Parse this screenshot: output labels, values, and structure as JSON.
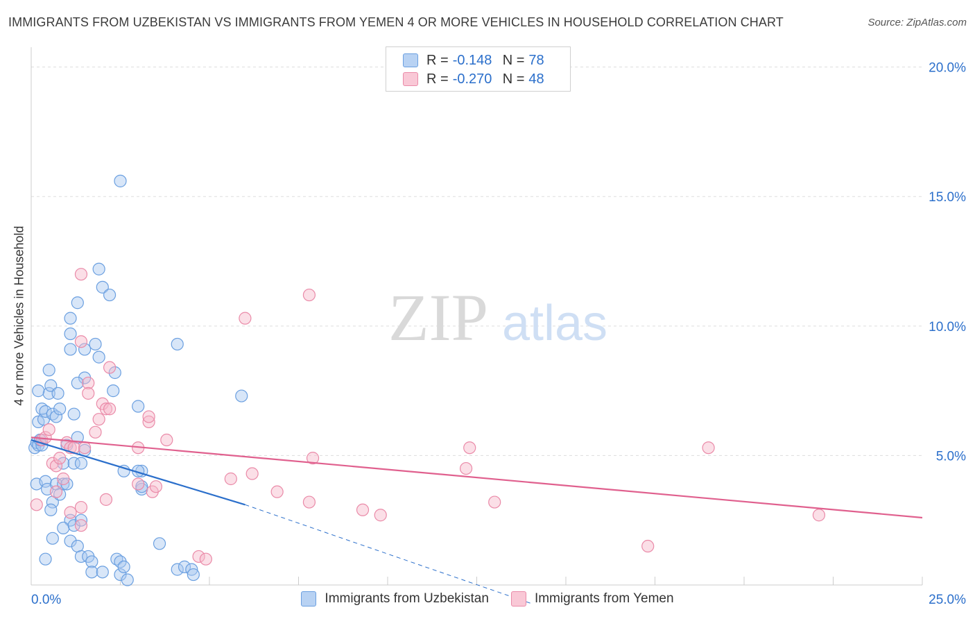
{
  "chart_data": {
    "type": "scatter",
    "title": "IMMIGRANTS FROM UZBEKISTAN VS IMMIGRANTS FROM YEMEN 4 OR MORE VEHICLES IN HOUSEHOLD CORRELATION CHART",
    "source": "Source: ZipAtlas.com",
    "xlabel": "",
    "ylabel": "4 or more Vehicles in Household",
    "xlim": [
      0,
      25
    ],
    "ylim": [
      0,
      20
    ],
    "x_tick_labels": [
      "0.0%",
      "25.0%"
    ],
    "y_ticks": [
      5,
      10,
      15,
      20
    ],
    "y_tick_labels": [
      "5.0%",
      "10.0%",
      "15.0%",
      "20.0%"
    ],
    "watermark": {
      "zip": "ZIP",
      "atlas": "atlas"
    },
    "legend": {
      "r_label": "R =",
      "n_label": "N =",
      "entries": [
        {
          "r": "-0.148",
          "n": "78"
        },
        {
          "r": "-0.270",
          "n": "48"
        }
      ]
    },
    "colors": {
      "uzbekistan_fill": "#a9c8ef",
      "uzbekistan_stroke": "#6a9fe0",
      "uzbekistan_line": "#2b6fcb",
      "yemen_fill": "#f6b7c9",
      "yemen_stroke": "#ea8aa8",
      "yemen_line": "#e0608e"
    },
    "series": [
      {
        "name": "Immigrants from Uzbekistan",
        "trend": {
          "x": [
            0,
            6
          ],
          "y": [
            5.6,
            3.1
          ],
          "dashed_to": [
            14,
            -0.7
          ]
        },
        "points": [
          [
            0.1,
            5.3
          ],
          [
            0.15,
            5.5
          ],
          [
            0.2,
            5.4
          ],
          [
            0.3,
            5.4
          ],
          [
            0.25,
            5.6
          ],
          [
            0.2,
            6.3
          ],
          [
            0.35,
            6.4
          ],
          [
            0.3,
            6.8
          ],
          [
            0.4,
            6.7
          ],
          [
            0.5,
            7.4
          ],
          [
            0.55,
            7.7
          ],
          [
            0.6,
            6.6
          ],
          [
            0.7,
            6.5
          ],
          [
            0.8,
            6.8
          ],
          [
            0.75,
            7.4
          ],
          [
            0.5,
            8.3
          ],
          [
            0.2,
            7.5
          ],
          [
            0.15,
            3.9
          ],
          [
            0.4,
            4.0
          ],
          [
            0.45,
            3.7
          ],
          [
            0.6,
            3.2
          ],
          [
            0.55,
            2.9
          ],
          [
            0.7,
            3.9
          ],
          [
            0.8,
            3.5
          ],
          [
            0.9,
            3.9
          ],
          [
            1.0,
            3.9
          ],
          [
            0.9,
            4.7
          ],
          [
            1.0,
            5.4
          ],
          [
            1.3,
            5.7
          ],
          [
            1.5,
            5.2
          ],
          [
            1.2,
            4.7
          ],
          [
            1.4,
            4.7
          ],
          [
            1.1,
            2.5
          ],
          [
            0.9,
            2.2
          ],
          [
            1.2,
            2.3
          ],
          [
            1.4,
            2.5
          ],
          [
            0.6,
            1.8
          ],
          [
            1.1,
            1.7
          ],
          [
            1.3,
            1.5
          ],
          [
            0.4,
            1.0
          ],
          [
            1.4,
            1.1
          ],
          [
            1.6,
            1.1
          ],
          [
            1.7,
            0.9
          ],
          [
            1.7,
            0.5
          ],
          [
            2.0,
            0.5
          ],
          [
            2.4,
            1.0
          ],
          [
            2.5,
            0.9
          ],
          [
            2.5,
            0.4
          ],
          [
            2.6,
            0.7
          ],
          [
            2.7,
            0.2
          ],
          [
            3.6,
            1.6
          ],
          [
            4.1,
            0.6
          ],
          [
            4.3,
            0.7
          ],
          [
            4.5,
            0.6
          ],
          [
            4.55,
            0.4
          ],
          [
            3.1,
            4.4
          ],
          [
            3.0,
            4.4
          ],
          [
            3.1,
            3.7
          ],
          [
            3.1,
            3.8
          ],
          [
            2.6,
            4.4
          ],
          [
            3.0,
            6.9
          ],
          [
            2.3,
            7.5
          ],
          [
            2.35,
            8.2
          ],
          [
            1.5,
            8.0
          ],
          [
            1.2,
            6.6
          ],
          [
            1.3,
            7.8
          ],
          [
            1.9,
            8.8
          ],
          [
            1.8,
            9.3
          ],
          [
            1.5,
            9.1
          ],
          [
            1.1,
            9.1
          ],
          [
            1.1,
            9.7
          ],
          [
            1.1,
            10.3
          ],
          [
            1.3,
            10.9
          ],
          [
            2.0,
            11.5
          ],
          [
            2.2,
            11.2
          ],
          [
            1.9,
            12.2
          ],
          [
            2.5,
            15.6
          ],
          [
            4.1,
            9.3
          ],
          [
            5.9,
            7.3
          ]
        ]
      },
      {
        "name": "Immigrants from Yemen",
        "trend": {
          "x": [
            0,
            25
          ],
          "y": [
            5.7,
            2.6
          ]
        },
        "points": [
          [
            0.15,
            3.1
          ],
          [
            0.3,
            5.6
          ],
          [
            0.4,
            5.7
          ],
          [
            0.5,
            6.0
          ],
          [
            0.6,
            4.7
          ],
          [
            0.7,
            4.6
          ],
          [
            0.8,
            4.9
          ],
          [
            0.7,
            3.6
          ],
          [
            0.9,
            4.1
          ],
          [
            1.0,
            5.5
          ],
          [
            1.1,
            5.3
          ],
          [
            1.1,
            2.8
          ],
          [
            1.2,
            5.3
          ],
          [
            1.4,
            2.3
          ],
          [
            1.4,
            3.0
          ],
          [
            1.5,
            5.3
          ],
          [
            1.8,
            5.9
          ],
          [
            1.9,
            6.4
          ],
          [
            2.0,
            7.0
          ],
          [
            2.1,
            6.8
          ],
          [
            2.2,
            6.8
          ],
          [
            1.4,
            9.4
          ],
          [
            1.6,
            7.8
          ],
          [
            1.6,
            7.4
          ],
          [
            2.2,
            8.4
          ],
          [
            1.4,
            12.0
          ],
          [
            2.1,
            3.3
          ],
          [
            3.0,
            3.9
          ],
          [
            3.4,
            3.6
          ],
          [
            3.5,
            3.8
          ],
          [
            3.3,
            6.3
          ],
          [
            3.3,
            6.5
          ],
          [
            3.0,
            5.3
          ],
          [
            3.8,
            5.6
          ],
          [
            4.7,
            1.1
          ],
          [
            4.9,
            1.0
          ],
          [
            5.6,
            4.1
          ],
          [
            6.2,
            4.3
          ],
          [
            6.0,
            10.3
          ],
          [
            6.9,
            3.6
          ],
          [
            7.8,
            11.2
          ],
          [
            7.8,
            3.2
          ],
          [
            7.9,
            4.9
          ],
          [
            9.3,
            2.9
          ],
          [
            9.8,
            2.7
          ],
          [
            12.3,
            5.3
          ],
          [
            12.2,
            4.5
          ],
          [
            13.0,
            3.2
          ],
          [
            17.3,
            1.5
          ],
          [
            19.0,
            5.3
          ],
          [
            22.1,
            2.7
          ]
        ]
      }
    ]
  }
}
